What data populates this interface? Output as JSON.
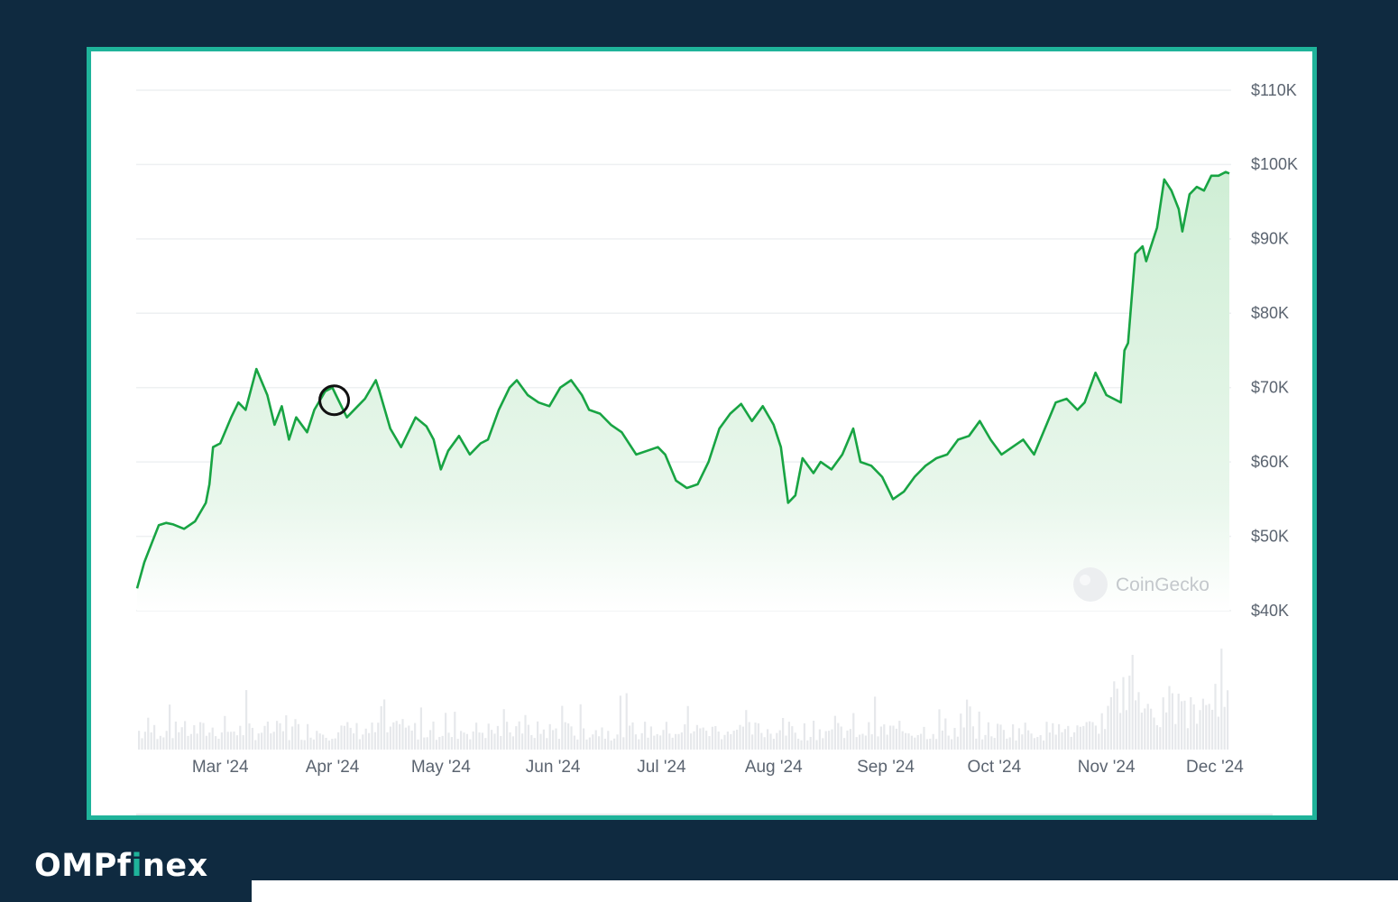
{
  "logo": {
    "text_before": "OMPf",
    "text_accent": "i",
    "text_after": "nex",
    "accent_color": "#1fb39a"
  },
  "watermark": {
    "text": "CoinGecko",
    "icon": "gecko-icon"
  },
  "colors": {
    "background": "#0f2a40",
    "frame_border": "#1fb39a",
    "line": "#18a443",
    "area_fill": "#d4efd8",
    "volume": "#e6e8eb",
    "grid": "#eef0f2",
    "marker": "#111111"
  },
  "chart_data": {
    "type": "area",
    "title": "",
    "xlabel": "",
    "ylabel": "",
    "y_tick_labels": [
      "$110K",
      "$100K",
      "$90K",
      "$80K",
      "$70K",
      "$60K",
      "$50K",
      "$40K"
    ],
    "y_ticks": [
      110000,
      100000,
      90000,
      80000,
      70000,
      60000,
      50000,
      40000
    ],
    "ylim": [
      40000,
      110000
    ],
    "x_tick_labels": [
      "Mar '24",
      "Apr '24",
      "May '24",
      "Jun '24",
      "Jul '24",
      "Aug '24",
      "Sep '24",
      "Oct '24",
      "Nov '24",
      "Dec '24"
    ],
    "x_ticks": [
      "2024-03-01",
      "2024-04-01",
      "2024-05-01",
      "2024-06-01",
      "2024-07-01",
      "2024-08-01",
      "2024-09-01",
      "2024-10-01",
      "2024-11-01",
      "2024-12-01"
    ],
    "xlim": [
      "2024-02-07",
      "2024-12-05"
    ],
    "grid": true,
    "y_axis_position": "right",
    "series": [
      {
        "x": [
          "2024-02-07",
          "2024-02-09",
          "2024-02-11",
          "2024-02-13",
          "2024-02-15",
          "2024-02-17",
          "2024-02-20",
          "2024-02-23",
          "2024-02-26",
          "2024-02-27",
          "2024-02-28",
          "2024-03-01",
          "2024-03-04",
          "2024-03-06",
          "2024-03-08",
          "2024-03-11",
          "2024-03-14",
          "2024-03-16",
          "2024-03-18",
          "2024-03-20",
          "2024-03-22",
          "2024-03-25",
          "2024-03-27",
          "2024-03-30",
          "2024-04-01",
          "2024-04-02",
          "2024-04-05",
          "2024-04-08",
          "2024-04-10",
          "2024-04-13",
          "2024-04-14",
          "2024-04-17",
          "2024-04-20",
          "2024-04-24",
          "2024-04-27",
          "2024-04-29",
          "2024-05-01",
          "2024-05-03",
          "2024-05-06",
          "2024-05-09",
          "2024-05-12",
          "2024-05-14",
          "2024-05-17",
          "2024-05-20",
          "2024-05-22",
          "2024-05-25",
          "2024-05-28",
          "2024-05-31",
          "2024-06-03",
          "2024-06-06",
          "2024-06-09",
          "2024-06-11",
          "2024-06-14",
          "2024-06-17",
          "2024-06-20",
          "2024-06-24",
          "2024-06-27",
          "2024-06-30",
          "2024-07-02",
          "2024-07-05",
          "2024-07-08",
          "2024-07-11",
          "2024-07-14",
          "2024-07-17",
          "2024-07-20",
          "2024-07-23",
          "2024-07-26",
          "2024-07-29",
          "2024-08-01",
          "2024-08-03",
          "2024-08-05",
          "2024-08-07",
          "2024-08-09",
          "2024-08-12",
          "2024-08-14",
          "2024-08-17",
          "2024-08-20",
          "2024-08-23",
          "2024-08-25",
          "2024-08-28",
          "2024-08-31",
          "2024-09-03",
          "2024-09-06",
          "2024-09-09",
          "2024-09-12",
          "2024-09-15",
          "2024-09-18",
          "2024-09-21",
          "2024-09-24",
          "2024-09-27",
          "2024-09-30",
          "2024-10-03",
          "2024-10-06",
          "2024-10-09",
          "2024-10-12",
          "2024-10-15",
          "2024-10-18",
          "2024-10-21",
          "2024-10-24",
          "2024-10-26",
          "2024-10-29",
          "2024-11-01",
          "2024-11-03",
          "2024-11-05",
          "2024-11-06",
          "2024-11-07",
          "2024-11-09",
          "2024-11-11",
          "2024-11-12",
          "2024-11-13",
          "2024-11-15",
          "2024-11-17",
          "2024-11-19",
          "2024-11-21",
          "2024-11-22",
          "2024-11-24",
          "2024-11-26",
          "2024-11-28",
          "2024-11-30",
          "2024-12-02",
          "2024-12-04",
          "2024-12-05"
        ],
        "values": [
          43000,
          46500,
          49000,
          51500,
          51800,
          51600,
          51000,
          52000,
          54500,
          57000,
          62000,
          62500,
          66000,
          68000,
          67000,
          72500,
          69000,
          65000,
          67500,
          63000,
          66000,
          64000,
          67000,
          69500,
          70000,
          69000,
          66000,
          67500,
          68500,
          71000,
          69500,
          64500,
          62000,
          66000,
          64800,
          63000,
          59000,
          61500,
          63500,
          61000,
          62500,
          63000,
          67000,
          70000,
          71000,
          69000,
          68000,
          67500,
          70000,
          71000,
          69000,
          67000,
          66500,
          65000,
          64000,
          61000,
          61500,
          62000,
          61000,
          57500,
          56500,
          57000,
          60000,
          64500,
          66500,
          67800,
          65500,
          67500,
          65000,
          62000,
          54500,
          55500,
          60500,
          58500,
          60000,
          59000,
          61000,
          64500,
          60000,
          59500,
          58000,
          55000,
          56000,
          58000,
          59500,
          60500,
          61000,
          63000,
          63500,
          65500,
          63000,
          61000,
          62000,
          63000,
          61000,
          64500,
          68000,
          68500,
          67000,
          68000,
          72000,
          69000,
          68500,
          68000,
          75000,
          76000,
          88000,
          89000,
          87000,
          88500,
          91500,
          98000,
          96500,
          94000,
          91000,
          96000,
          97000,
          96500,
          98500,
          98500,
          99000,
          98800
        ]
      }
    ],
    "volume_shown": true,
    "marker": {
      "x": "2024-04-01",
      "y": 68300,
      "shape": "circle"
    }
  }
}
